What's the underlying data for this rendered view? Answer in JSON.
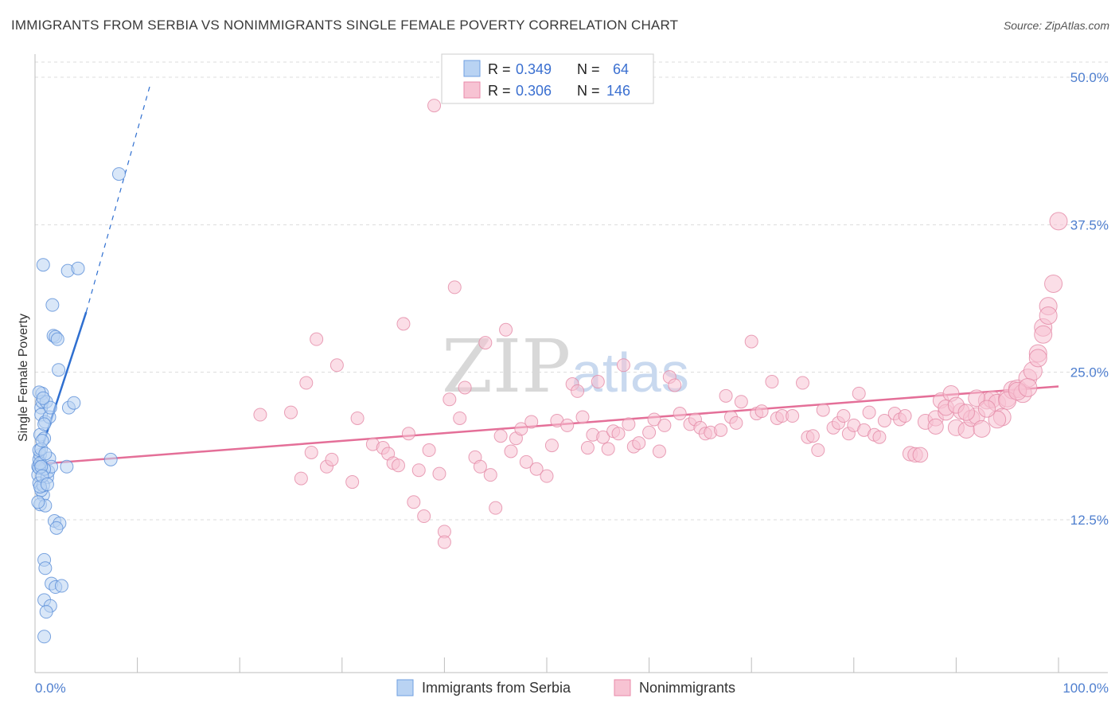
{
  "title": "IMMIGRANTS FROM SERBIA VS NONIMMIGRANTS SINGLE FEMALE POVERTY CORRELATION CHART",
  "source": "Source: ZipAtlas.com",
  "watermark": {
    "zip": "ZIP",
    "atlas": "atlas"
  },
  "legend_top": [
    {
      "r_label": "R =",
      "r_value": "0.349",
      "n_label": "N =",
      "n_value": "64",
      "color": "#b9d3f3",
      "stroke": "#6f9fe0"
    },
    {
      "r_label": "R =",
      "r_value": "0.306",
      "n_label": "N =",
      "n_value": "146",
      "color": "#f7c3d3",
      "stroke": "#e98aa8"
    }
  ],
  "chart_data": {
    "type": "scatter",
    "title": "IMMIGRANTS FROM SERBIA VS NONIMMIGRANTS SINGLE FEMALE POVERTY CORRELATION CHART",
    "xlabel": "",
    "ylabel": "Single Female Poverty",
    "xlim": [
      0,
      100
    ],
    "ylim": [
      0,
      52
    ],
    "y_ticks": [
      12.5,
      25.0,
      37.5,
      50.0
    ],
    "y_tick_labels": [
      "12.5%",
      "25.0%",
      "37.5%",
      "50.0%"
    ],
    "x_tick_labels": [
      "0.0%",
      "100.0%"
    ],
    "grid": true,
    "series": [
      {
        "name": "Immigrants from Serbia",
        "color": "#b9d3f3",
        "stroke": "#5b8fd8",
        "trend_color": "#2f6fd0",
        "trend": {
          "x0": 0,
          "y0": 16.8,
          "x1": 5,
          "y1": 30.1,
          "dash_x1": 11.3,
          "dash_y1": 49.5
        },
        "points": [
          [
            0.3,
            17.0
          ],
          [
            0.3,
            16.3
          ],
          [
            0.4,
            17.6
          ],
          [
            0.4,
            15.6
          ],
          [
            0.5,
            19.7
          ],
          [
            0.5,
            18.0
          ],
          [
            0.6,
            22.0
          ],
          [
            0.6,
            21.4
          ],
          [
            0.7,
            23.2
          ],
          [
            0.7,
            22.5
          ],
          [
            0.8,
            14.6
          ],
          [
            0.5,
            13.8
          ],
          [
            0.6,
            15.0
          ],
          [
            0.4,
            18.4
          ],
          [
            0.9,
            19.4
          ],
          [
            1.0,
            20.8
          ],
          [
            1.1,
            22.5
          ],
          [
            1.2,
            16.1
          ],
          [
            1.3,
            16.6
          ],
          [
            1.4,
            17.7
          ],
          [
            1.4,
            21.2
          ],
          [
            1.5,
            22.0
          ],
          [
            1.6,
            17.0
          ],
          [
            1.7,
            30.7
          ],
          [
            1.8,
            28.1
          ],
          [
            2.0,
            28.0
          ],
          [
            0.8,
            34.1
          ],
          [
            3.2,
            33.6
          ],
          [
            4.2,
            33.8
          ],
          [
            2.2,
            27.8
          ],
          [
            1.9,
            12.4
          ],
          [
            2.4,
            12.2
          ],
          [
            2.1,
            11.8
          ],
          [
            0.9,
            9.1
          ],
          [
            1.0,
            8.4
          ],
          [
            1.6,
            7.1
          ],
          [
            2.0,
            6.8
          ],
          [
            2.6,
            6.9
          ],
          [
            0.9,
            5.7
          ],
          [
            1.5,
            5.2
          ],
          [
            1.1,
            4.7
          ],
          [
            0.9,
            2.6
          ],
          [
            3.1,
            17.0
          ],
          [
            3.3,
            22.0
          ],
          [
            3.8,
            22.4
          ],
          [
            7.4,
            17.6
          ],
          [
            8.2,
            41.8
          ],
          [
            2.3,
            25.2
          ],
          [
            0.4,
            23.3
          ],
          [
            0.6,
            18.5
          ],
          [
            0.7,
            19.2
          ],
          [
            0.8,
            15.4
          ],
          [
            0.9,
            16.8
          ],
          [
            1.0,
            13.7
          ],
          [
            0.3,
            14.0
          ],
          [
            0.4,
            16.9
          ],
          [
            0.5,
            15.3
          ],
          [
            0.5,
            17.3
          ],
          [
            0.6,
            17.0
          ],
          [
            0.7,
            16.2
          ],
          [
            0.8,
            22.8
          ],
          [
            0.9,
            20.6
          ],
          [
            1.0,
            18.1
          ],
          [
            1.2,
            15.5
          ]
        ]
      },
      {
        "name": "Nonimmigrants",
        "color": "#f7c3d3",
        "stroke": "#e48aa6",
        "trend_color": "#e46f98",
        "trend": {
          "x0": 0,
          "y0": 17.2,
          "x1": 100,
          "y1": 23.8
        },
        "points": [
          [
            22,
            21.4
          ],
          [
            25,
            21.6
          ],
          [
            26,
            16.0
          ],
          [
            26.5,
            24.1
          ],
          [
            27,
            18.2
          ],
          [
            27.5,
            27.8
          ],
          [
            28.5,
            17.0
          ],
          [
            29,
            17.6
          ],
          [
            29.5,
            25.6
          ],
          [
            31,
            15.7
          ],
          [
            31.5,
            21.1
          ],
          [
            33,
            18.9
          ],
          [
            34,
            18.6
          ],
          [
            34.5,
            18.1
          ],
          [
            35,
            17.3
          ],
          [
            35.5,
            17.1
          ],
          [
            36,
            29.1
          ],
          [
            36.5,
            19.8
          ],
          [
            37,
            14.0
          ],
          [
            37.5,
            16.7
          ],
          [
            38,
            12.8
          ],
          [
            38.5,
            18.4
          ],
          [
            39,
            47.6
          ],
          [
            39.5,
            16.4
          ],
          [
            40,
            11.5
          ],
          [
            40,
            10.6
          ],
          [
            40.5,
            22.7
          ],
          [
            41,
            32.2
          ],
          [
            41.5,
            21.1
          ],
          [
            42,
            23.7
          ],
          [
            43,
            17.8
          ],
          [
            43.5,
            17.0
          ],
          [
            44,
            27.5
          ],
          [
            44.5,
            16.3
          ],
          [
            45,
            13.5
          ],
          [
            45.5,
            19.6
          ],
          [
            46,
            28.6
          ],
          [
            46.5,
            18.3
          ],
          [
            47,
            19.4
          ],
          [
            47.5,
            20.2
          ],
          [
            48,
            17.4
          ],
          [
            48.5,
            20.8
          ],
          [
            49,
            16.8
          ],
          [
            50,
            16.2
          ],
          [
            50.5,
            18.8
          ],
          [
            51,
            20.9
          ],
          [
            52,
            20.5
          ],
          [
            52.5,
            24.0
          ],
          [
            53,
            23.4
          ],
          [
            53.5,
            21.2
          ],
          [
            54,
            18.6
          ],
          [
            54.5,
            19.7
          ],
          [
            55,
            24.2
          ],
          [
            55.5,
            19.5
          ],
          [
            56,
            18.5
          ],
          [
            56.5,
            20.0
          ],
          [
            57,
            19.8
          ],
          [
            57.5,
            25.6
          ],
          [
            58,
            20.6
          ],
          [
            58.5,
            18.7
          ],
          [
            59,
            19.0
          ],
          [
            60,
            19.9
          ],
          [
            60.5,
            21.0
          ],
          [
            61,
            18.3
          ],
          [
            61.5,
            20.5
          ],
          [
            62,
            24.6
          ],
          [
            62.5,
            23.9
          ],
          [
            63,
            21.5
          ],
          [
            64,
            20.6
          ],
          [
            64.5,
            21.0
          ],
          [
            65,
            20.3
          ],
          [
            65.5,
            19.8
          ],
          [
            66,
            19.9
          ],
          [
            67,
            20.1
          ],
          [
            67.5,
            23.0
          ],
          [
            68,
            21.2
          ],
          [
            68.5,
            20.7
          ],
          [
            69,
            22.5
          ],
          [
            70,
            27.6
          ],
          [
            70.5,
            21.5
          ],
          [
            71,
            21.7
          ],
          [
            72,
            24.2
          ],
          [
            72.5,
            21.1
          ],
          [
            73,
            21.3
          ],
          [
            74,
            21.3
          ],
          [
            75,
            24.1
          ],
          [
            75.5,
            19.5
          ],
          [
            76,
            19.6
          ],
          [
            76.5,
            18.4
          ],
          [
            77,
            21.8
          ],
          [
            78,
            20.3
          ],
          [
            78.5,
            20.7
          ],
          [
            79,
            21.3
          ],
          [
            79.5,
            19.8
          ],
          [
            80,
            20.5
          ],
          [
            80.5,
            23.2
          ],
          [
            81,
            20.1
          ],
          [
            81.5,
            21.6
          ],
          [
            82,
            19.7
          ],
          [
            82.5,
            19.5
          ],
          [
            83,
            20.9
          ],
          [
            84,
            21.5
          ],
          [
            84.5,
            21.0
          ],
          [
            85,
            21.3
          ],
          [
            85.5,
            18.1
          ],
          [
            86,
            18.0
          ],
          [
            86.5,
            18.0
          ],
          [
            87,
            20.8
          ],
          [
            88,
            21.1
          ],
          [
            88.5,
            22.6
          ],
          [
            89,
            21.6
          ],
          [
            89.5,
            23.2
          ],
          [
            90,
            20.3
          ],
          [
            90.5,
            21.7
          ],
          [
            91,
            20.1
          ],
          [
            91.5,
            21.1
          ],
          [
            92,
            21.3
          ],
          [
            92.5,
            20.2
          ],
          [
            93,
            22.6
          ],
          [
            93.5,
            22.7
          ],
          [
            94,
            22.4
          ],
          [
            94.5,
            21.2
          ],
          [
            95,
            22.8
          ],
          [
            95.5,
            23.5
          ],
          [
            96,
            23.6
          ],
          [
            96.5,
            23.2
          ],
          [
            97,
            24.5
          ],
          [
            97.5,
            25.1
          ],
          [
            98,
            26.6
          ],
          [
            98.5,
            28.8
          ],
          [
            99,
            30.6
          ],
          [
            99.5,
            32.5
          ],
          [
            100,
            37.8
          ],
          [
            94,
            21.0
          ],
          [
            95,
            22.6
          ],
          [
            96,
            23.4
          ],
          [
            97,
            23.7
          ],
          [
            98,
            26.2
          ],
          [
            98.5,
            28.2
          ],
          [
            99,
            29.8
          ],
          [
            88,
            20.4
          ],
          [
            89,
            22.0
          ],
          [
            90,
            22.2
          ],
          [
            91,
            21.6
          ],
          [
            92,
            22.8
          ],
          [
            93,
            21.9
          ]
        ]
      }
    ]
  },
  "bottom_legend": [
    {
      "label": "Immigrants from Serbia",
      "color": "#b9d3f3",
      "stroke": "#6f9fe0"
    },
    {
      "label": "Nonimmigrants",
      "color": "#f7c3d3",
      "stroke": "#e98aa8"
    }
  ]
}
